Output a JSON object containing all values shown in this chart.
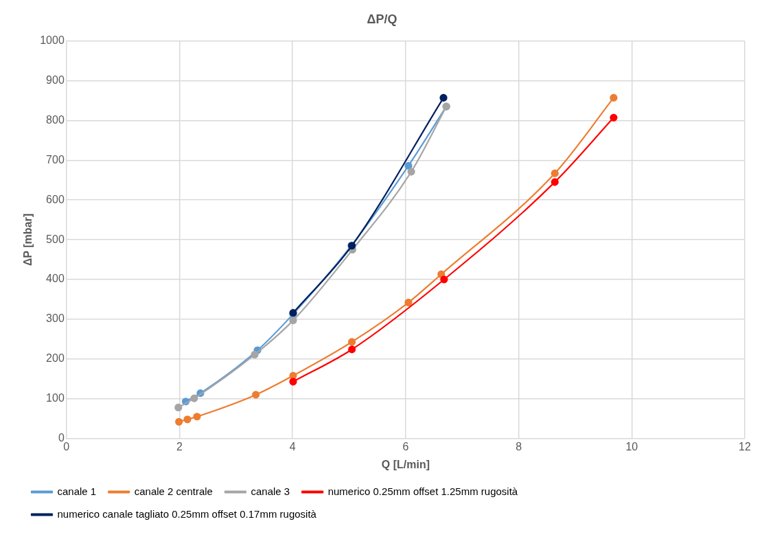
{
  "chart_data": {
    "type": "line",
    "title": "ΔP/Q",
    "xlabel": "Q [L/min]",
    "ylabel": "ΔP [mbar]",
    "xlim": [
      0,
      12
    ],
    "xticks": [
      0,
      2,
      4,
      6,
      8,
      10,
      12
    ],
    "ylim": [
      0,
      1000
    ],
    "yticks": [
      0,
      100,
      200,
      300,
      400,
      500,
      600,
      700,
      800,
      900,
      1000
    ],
    "grid": true,
    "legend": "bottom",
    "marker": "circle",
    "line_style": "solid",
    "series": [
      {
        "name": "canale 1",
        "color": "#5b9bd5",
        "x": [
          2.11,
          2.37,
          3.38,
          4.01,
          5.04,
          6.05,
          6.72
        ],
        "values": [
          93,
          114,
          222,
          313,
          485,
          686,
          835
        ]
      },
      {
        "name": "canale 2 centrale",
        "color": "#ed7d31",
        "x": [
          1.99,
          2.14,
          2.31,
          3.35,
          4.01,
          5.05,
          6.05,
          6.63,
          8.64,
          9.68
        ],
        "values": [
          42,
          48,
          55,
          110,
          158,
          243,
          342,
          413,
          667,
          857
        ]
      },
      {
        "name": "canale 3",
        "color": "#a5a5a5",
        "x": [
          1.98,
          2.26,
          3.33,
          4.01,
          5.06,
          6.1,
          6.72
        ],
        "values": [
          78,
          101,
          211,
          297,
          475,
          671,
          835
        ]
      },
      {
        "name": "numerico 0.25mm offset 1.25mm rugosità",
        "color": "#ff0000",
        "x": [
          4.01,
          5.05,
          6.68,
          8.64,
          9.68
        ],
        "values": [
          143,
          224,
          400,
          645,
          807
        ]
      },
      {
        "name": "numerico canale tagliato 0.25mm offset 0.17mm rugosità",
        "color": "#002060",
        "x": [
          4.01,
          5.05,
          6.67
        ],
        "values": [
          316,
          485,
          857
        ]
      }
    ]
  }
}
